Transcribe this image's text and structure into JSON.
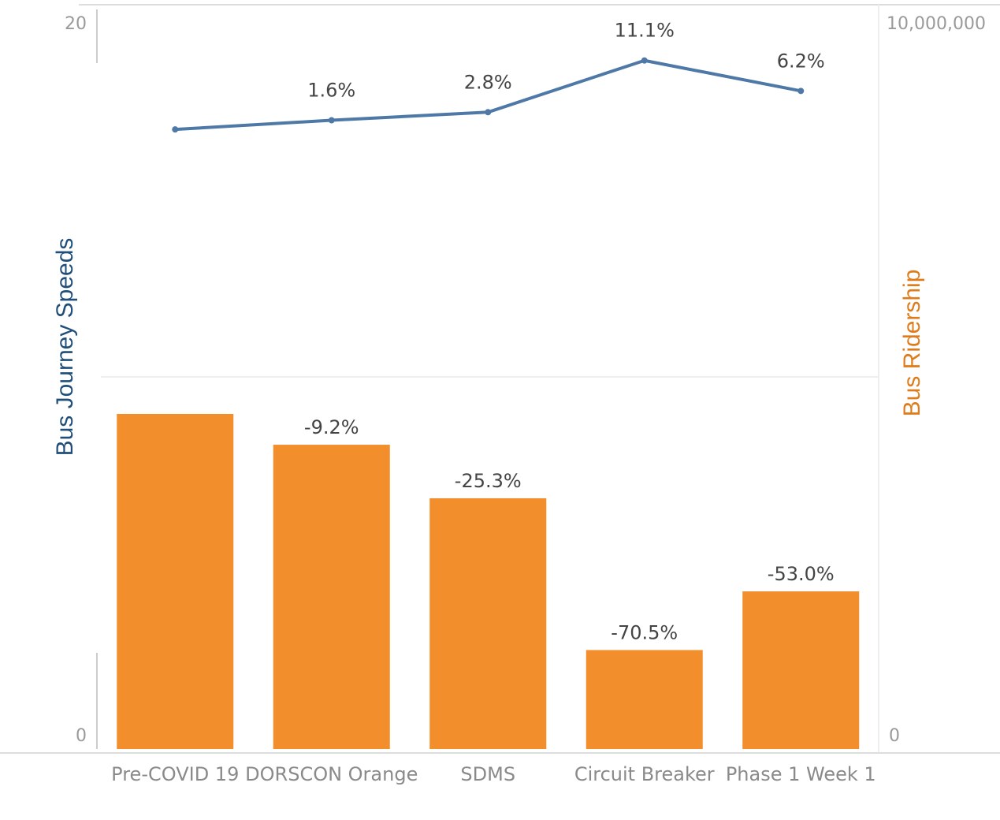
{
  "chart_data": {
    "type": "bar",
    "categories": [
      "Pre-COVID 19",
      "DORSCON Orange",
      "SDMS",
      "Circuit Breaker",
      "Phase 1 Week 1"
    ],
    "left_axis": {
      "label": "Bus Journey Speeds",
      "ticks": [
        "20",
        "0"
      ],
      "range": [
        0,
        20
      ]
    },
    "right_axis": {
      "label": "Bus Ridership",
      "ticks": [
        "10,000,000",
        "0"
      ],
      "range": [
        0,
        10000000
      ]
    },
    "series": [
      {
        "name": "Bus Journey Speeds",
        "type": "line",
        "axis": "left",
        "values": [
          16.9,
          17.15,
          17.37,
          18.78,
          17.95
        ],
        "labels": [
          "",
          "1.6%",
          "2.8%",
          "11.1%",
          "6.2%"
        ]
      },
      {
        "name": "Bus Ridership",
        "type": "bar",
        "axis": "right",
        "values": [
          4570000,
          4150000,
          3420000,
          1350000,
          2150000
        ],
        "labels": [
          "",
          "-9.2%",
          "-25.3%",
          "-70.5%",
          "-53.0%"
        ]
      }
    ],
    "colors": {
      "line": "#4e79a7",
      "bar": "#f28e2b",
      "left_title": "#1f4e79",
      "right_title": "#e07b1a"
    },
    "grid": false
  }
}
